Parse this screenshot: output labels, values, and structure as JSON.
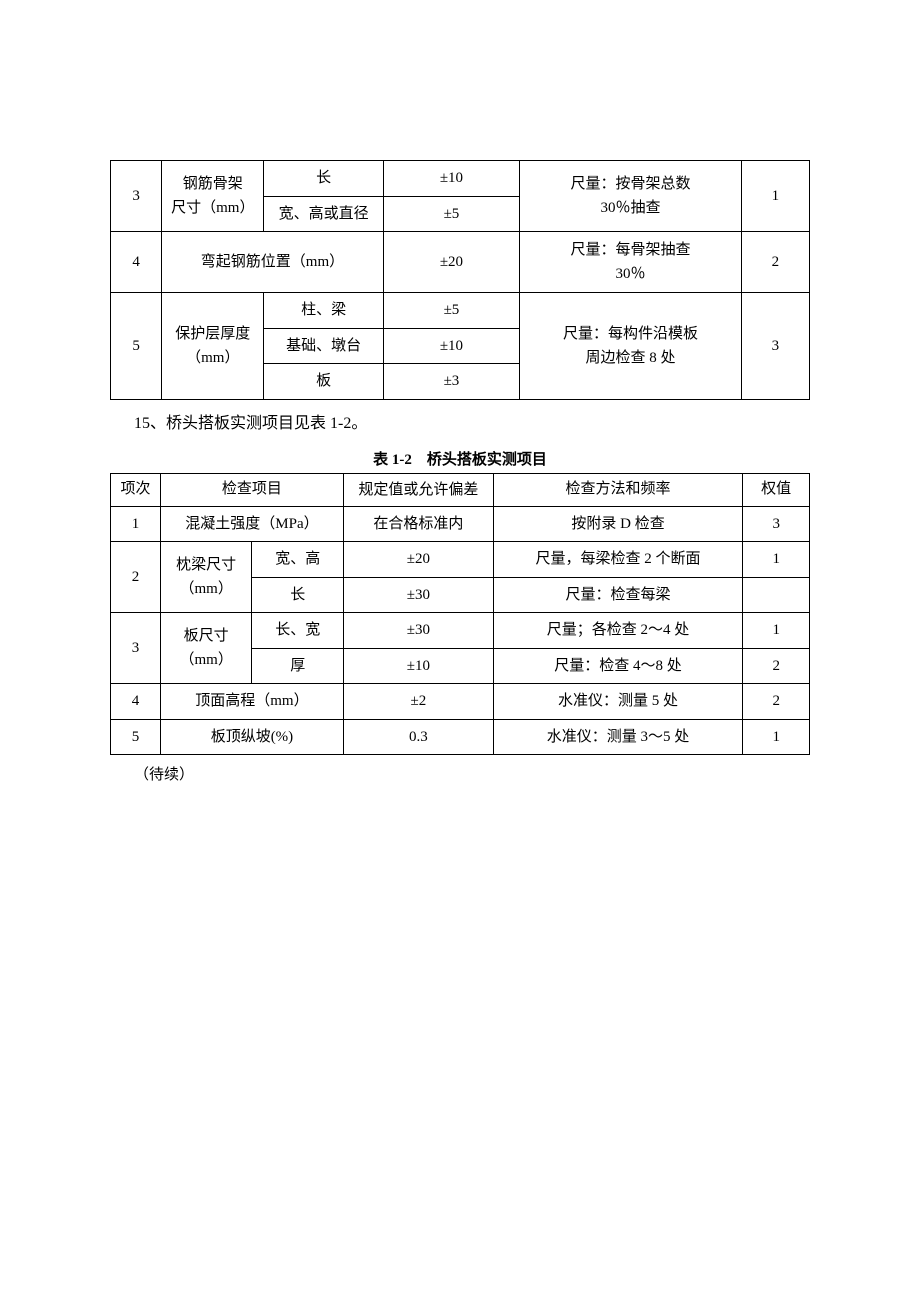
{
  "table1": {
    "rows": [
      {
        "num": "3",
        "item": "钢筋骨架\n尺寸（mm）",
        "subA": "长",
        "tolA": "±10",
        "subB": "宽、高或直径",
        "tolB": "±5",
        "method": "尺量：按骨架总数\n30％抽查",
        "weight": "1"
      },
      {
        "num": "4",
        "item": "弯起钢筋位置（mm）",
        "tol": "±20",
        "method": "尺量：每骨架抽查\n30％",
        "weight": "2"
      },
      {
        "num": "5",
        "item": "保护层厚度\n（mm）",
        "subA": "柱、梁",
        "tolA": "±5",
        "subB": "基础、墩台",
        "tolB": "±10",
        "subC": "板",
        "tolC": "±3",
        "method": "尺量：每构件沿模板\n周边检查 8 处",
        "weight": "3"
      }
    ]
  },
  "paragraph15": "15、桥头搭板实测项目见表 1-2。",
  "table2": {
    "title": "表 1-2　桥头搭板实测项目",
    "headers": {
      "num": "项次",
      "item": "检查项目",
      "tol": "规定值或允许偏差",
      "method": "检查方法和频率",
      "weight": "权值"
    },
    "rows": [
      {
        "num": "1",
        "item": "混凝土强度（MPa）",
        "tol": "在合格标准内",
        "method": "按附录 D 检查",
        "weight": "3"
      },
      {
        "num": "2",
        "item": "枕梁尺寸\n（mm）",
        "subA": "宽、高",
        "tolA": "±20",
        "methodA": "尺量，每梁检查 2 个断面",
        "weightA": "1",
        "subB": "长",
        "tolB": "±30",
        "methodB": "尺量：检查每梁",
        "weightB": ""
      },
      {
        "num": "3",
        "item": "板尺寸\n（mm）",
        "subA": "长、宽",
        "tolA": "±30",
        "methodA": "尺量；各检查 2～4 处",
        "weightA": "1",
        "subB": "厚",
        "tolB": "±10",
        "methodB": "尺量：检查 4～8 处",
        "weightB": "2"
      },
      {
        "num": "4",
        "item": "顶面高程（mm）",
        "tol": "±2",
        "method": "水准仪：测量 5 处",
        "weight": "2"
      },
      {
        "num": "5",
        "item": "板顶纵坡(%)",
        "tol": "0.3",
        "method": "水准仪：测量 3～5 处",
        "weight": "1"
      }
    ]
  },
  "continued": "（待续）"
}
